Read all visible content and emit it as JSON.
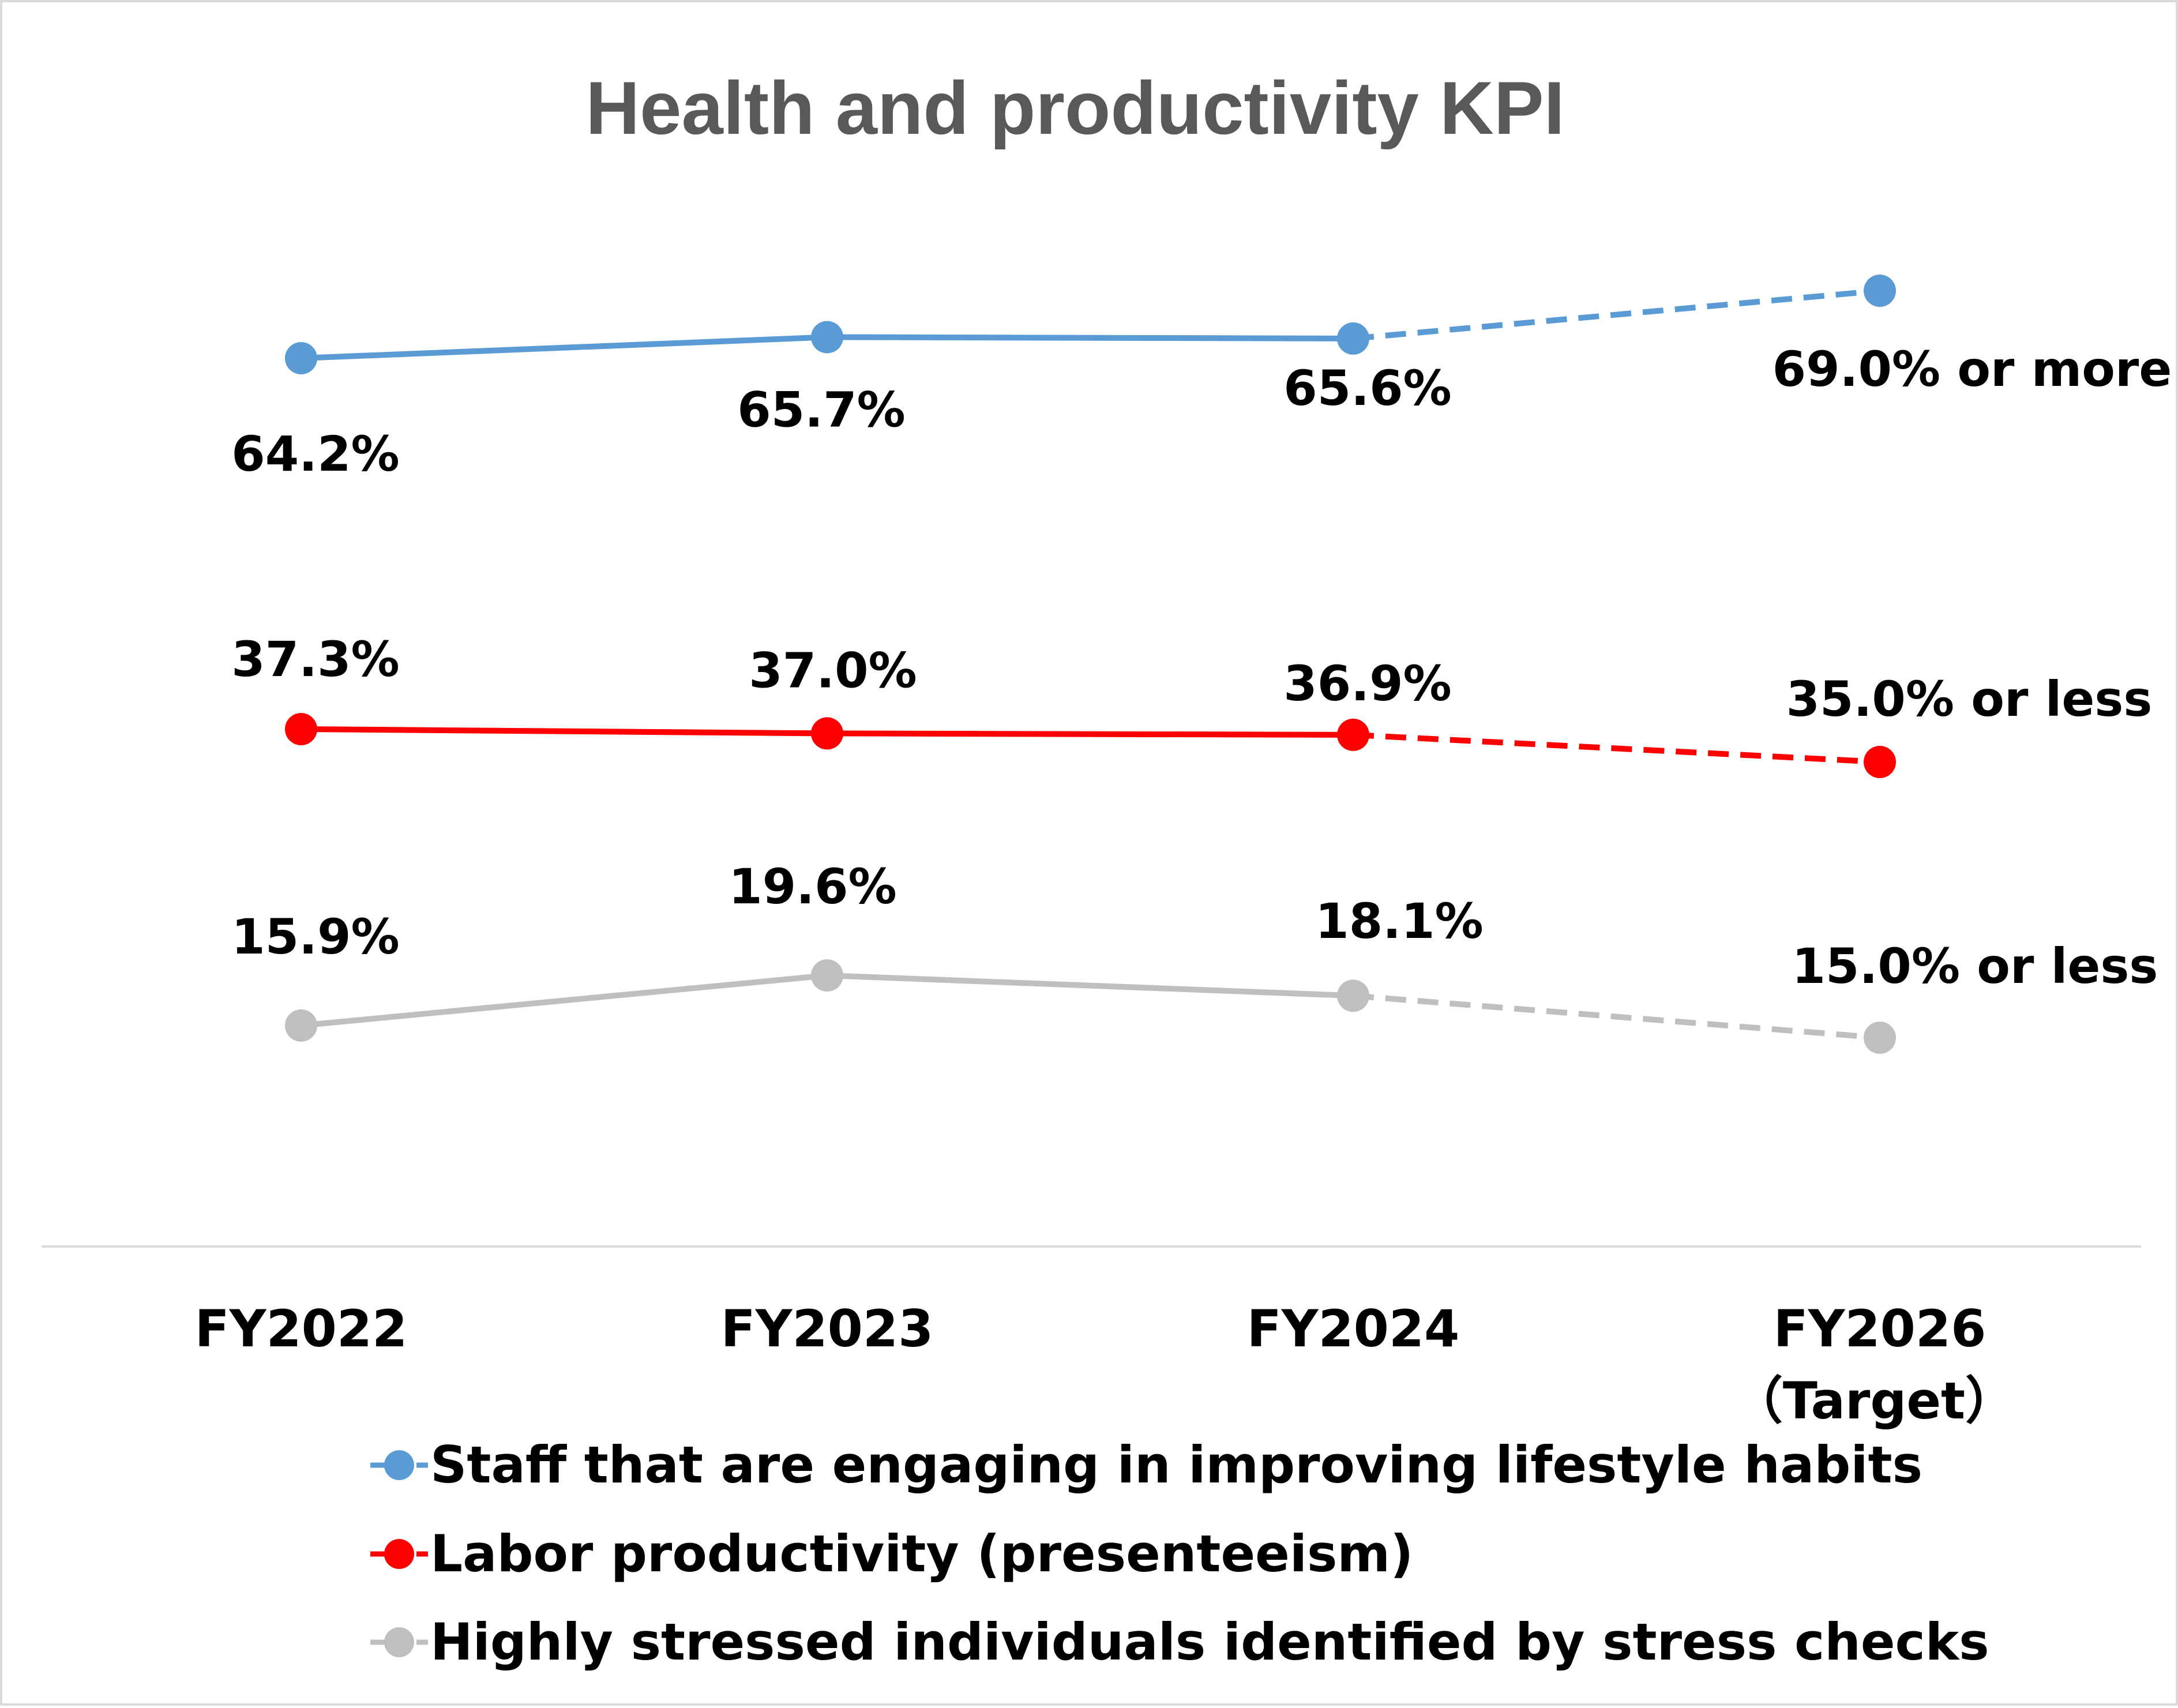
{
  "chart_data": {
    "type": "line",
    "title": "Health and productivity KPI",
    "categories": [
      "FY2022",
      "FY2023",
      "FY2024",
      "FY2026"
    ],
    "category_sublabels": [
      "",
      "",
      "",
      "（Target）"
    ],
    "ylim": [
      0,
      80
    ],
    "grid": false,
    "legend_position": "bottom",
    "target_index": 3,
    "series": [
      {
        "name": "Staff that are engaging in improving lifestyle habits",
        "color": "#5b9bd5",
        "values": [
          64.2,
          65.7,
          65.6,
          69.0
        ],
        "labels": [
          "64.2%",
          "65.7%",
          "65.6%",
          "69.0% or more"
        ]
      },
      {
        "name": "Labor productivity (presenteeism)",
        "color": "#ff0000",
        "values": [
          37.3,
          37.0,
          36.9,
          35.0
        ],
        "labels": [
          "37.3%",
          "37.0%",
          "36.9%",
          "35.0% or less"
        ]
      },
      {
        "name": "Highly stressed individuals identified by stress checks",
        "color": "#bfbfbf",
        "values": [
          15.9,
          19.6,
          18.1,
          15.0
        ],
        "labels": [
          "15.9%",
          "19.6%",
          "18.1%",
          "15.0% or less"
        ]
      }
    ]
  }
}
